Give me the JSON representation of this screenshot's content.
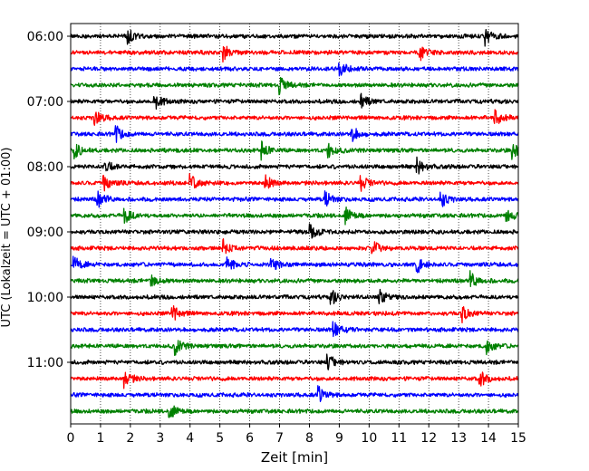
{
  "chart_data": {
    "type": "line",
    "title": "",
    "xlabel": "Zeit  [min]",
    "ylabel": "UTC (Lokalzeit = UTC + 01:00)",
    "xlim": [
      0,
      15
    ],
    "x_ticks": [
      0,
      1,
      2,
      3,
      4,
      5,
      6,
      7,
      8,
      9,
      10,
      11,
      12,
      13,
      14,
      15
    ],
    "x_grid": "dotted",
    "y_ticks": [
      "06:00",
      "07:00",
      "08:00",
      "09:00",
      "10:00",
      "11:00"
    ],
    "trace_start_times": [
      "06:00",
      "06:15",
      "06:30",
      "06:45",
      "07:00",
      "07:15",
      "07:30",
      "07:45",
      "08:00",
      "08:15",
      "08:30",
      "08:45",
      "09:00",
      "09:15",
      "09:30",
      "09:45",
      "10:00",
      "10:15",
      "10:30",
      "10:45",
      "11:00",
      "11:15",
      "11:30",
      "11:45"
    ],
    "trace_colors": [
      "#000000",
      "#ff0000",
      "#0000ff",
      "#008000"
    ],
    "events": [
      {
        "trace": "06:00",
        "minutes": [
          1.9,
          13.9
        ]
      },
      {
        "trace": "06:15",
        "minutes": [
          5.1,
          11.7
        ]
      },
      {
        "trace": "06:30",
        "minutes": [
          9.0
        ]
      },
      {
        "trace": "06:45",
        "minutes": [
          7.0
        ]
      },
      {
        "trace": "07:00",
        "minutes": [
          2.8,
          9.7
        ]
      },
      {
        "trace": "07:15",
        "minutes": [
          0.8,
          14.2
        ]
      },
      {
        "trace": "07:30",
        "minutes": [
          1.5,
          9.4
        ]
      },
      {
        "trace": "07:45",
        "minutes": [
          0.1,
          6.4,
          8.6,
          14.8
        ]
      },
      {
        "trace": "08:00",
        "minutes": [
          1.1,
          11.6
        ]
      },
      {
        "trace": "08:15",
        "minutes": [
          1.1,
          4.0,
          6.5,
          9.7
        ]
      },
      {
        "trace": "08:30",
        "minutes": [
          0.9,
          8.5,
          12.4
        ]
      },
      {
        "trace": "08:45",
        "minutes": [
          1.8,
          9.2,
          14.6
        ]
      },
      {
        "trace": "09:00",
        "minutes": [
          8.0
        ]
      },
      {
        "trace": "09:15",
        "minutes": [
          5.1,
          10.1
        ]
      },
      {
        "trace": "09:30",
        "minutes": [
          0.1,
          5.2,
          6.7,
          11.6
        ]
      },
      {
        "trace": "09:45",
        "minutes": [
          2.7,
          13.4
        ]
      },
      {
        "trace": "10:00",
        "minutes": [
          8.7,
          10.3
        ]
      },
      {
        "trace": "10:15",
        "minutes": [
          3.4,
          13.1
        ]
      },
      {
        "trace": "10:30",
        "minutes": [
          8.8
        ]
      },
      {
        "trace": "10:45",
        "minutes": [
          3.5,
          13.9
        ]
      },
      {
        "trace": "11:00",
        "minutes": [
          8.6
        ]
      },
      {
        "trace": "11:15",
        "minutes": [
          1.8,
          13.7
        ]
      },
      {
        "trace": "11:30",
        "minutes": [
          8.3
        ]
      },
      {
        "trace": "11:45",
        "minutes": [
          3.3
        ]
      }
    ]
  }
}
